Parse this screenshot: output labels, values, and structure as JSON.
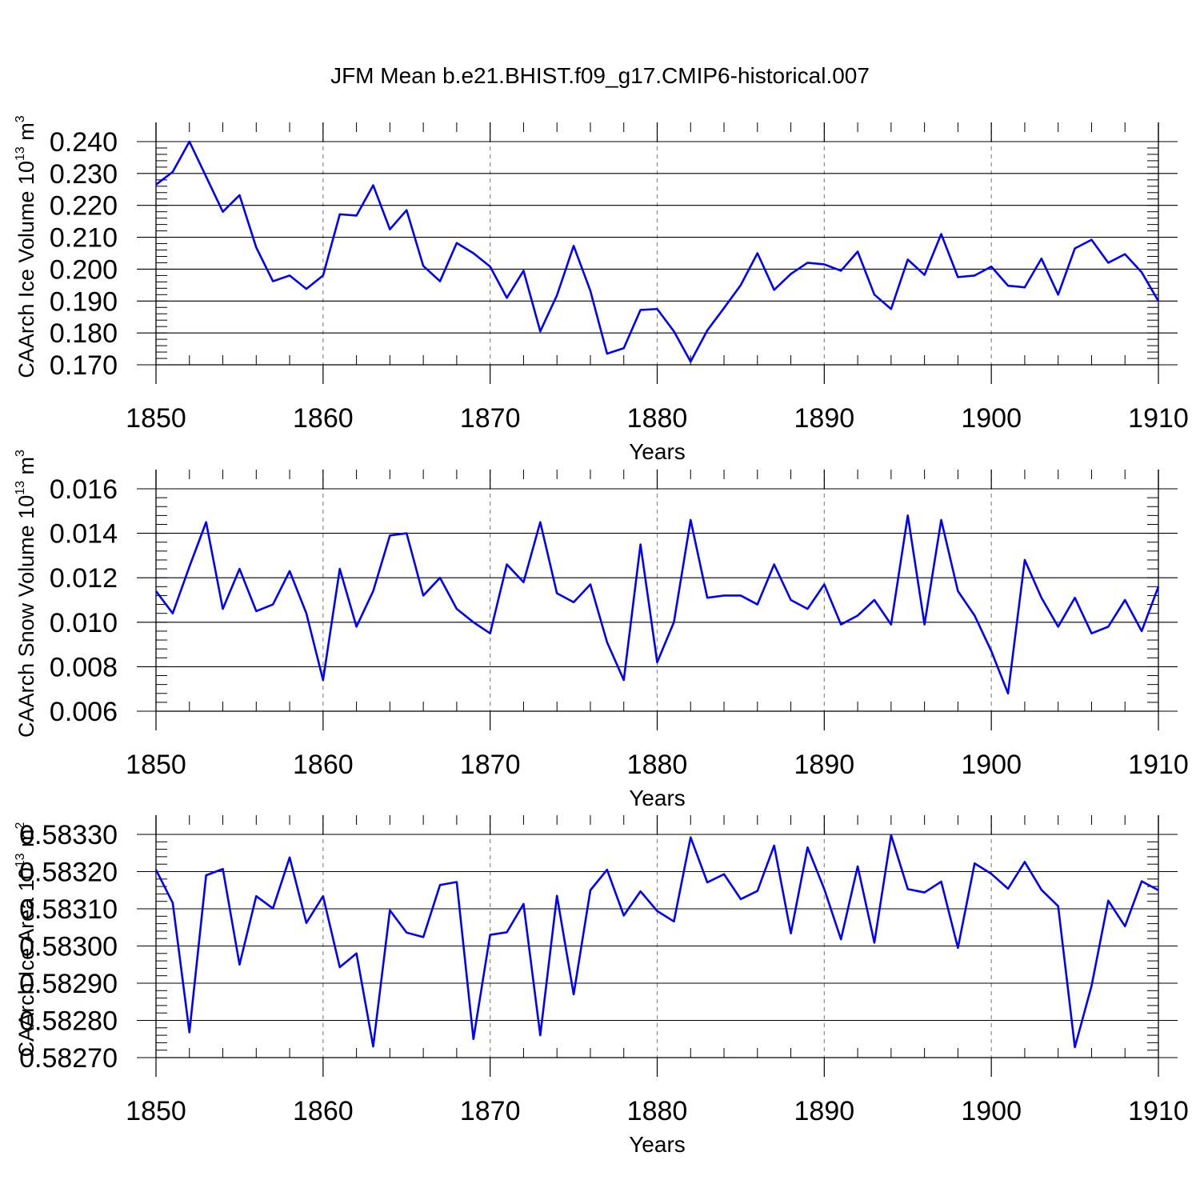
{
  "title": "JFM Mean b.e21.BHIST.f09_g17.CMIP6-historical.007",
  "chart_data": [
    {
      "type": "line",
      "ylabel": {
        "base": "CAArch Ice Volume 10",
        "exp": "13",
        "unit": "m",
        "unit_exp": "3"
      },
      "xlabel": "Years",
      "xlim": [
        1850,
        1910
      ],
      "ylim": [
        0.17,
        0.24
      ],
      "xticks": [
        1850,
        1860,
        1870,
        1880,
        1890,
        1900,
        1910
      ],
      "xtick_labels": [
        "1850",
        "1860",
        "1870",
        "1880",
        "1890",
        "1900",
        "1910"
      ],
      "yticks": [
        0.17,
        0.18,
        0.19,
        0.2,
        0.21,
        0.22,
        0.23,
        0.24
      ],
      "ytick_labels": [
        "0.170",
        "0.180",
        "0.190",
        "0.200",
        "0.210",
        "0.220",
        "0.230",
        "0.240"
      ],
      "minor_y_step": 0.002,
      "color": "#0000ff",
      "series": [
        {
          "name": "CAArch Ice Volume",
          "x_start": 1850,
          "values": [
            0.2265,
            0.2305,
            0.24,
            0.229,
            0.218,
            0.2232,
            0.2068,
            0.1962,
            0.198,
            0.1938,
            0.198,
            0.2172,
            0.2168,
            0.2263,
            0.2125,
            0.2185,
            0.201,
            0.1962,
            0.2082,
            0.205,
            0.2008,
            0.191,
            0.1995,
            0.1805,
            0.1918,
            0.2073,
            0.1932,
            0.1735,
            0.1752,
            0.1872,
            0.1875,
            0.1805,
            0.171,
            0.1808,
            0.1878,
            0.195,
            0.205,
            0.1935,
            0.1985,
            0.202,
            0.2015,
            0.1995,
            0.2055,
            0.192,
            0.1875,
            0.203,
            0.1982,
            0.211,
            0.1975,
            0.198,
            0.2008,
            0.1948,
            0.1943,
            0.2033,
            0.192,
            0.2065,
            0.2092,
            0.202,
            0.2047,
            0.199,
            0.19
          ]
        }
      ]
    },
    {
      "type": "line",
      "ylabel": {
        "base": "CAArch Snow Volume 10",
        "exp": "13",
        "unit": "m",
        "unit_exp": "3"
      },
      "xlabel": "Years",
      "xlim": [
        1850,
        1910
      ],
      "ylim": [
        0.006,
        0.016
      ],
      "xticks": [
        1850,
        1860,
        1870,
        1880,
        1890,
        1900,
        1910
      ],
      "xtick_labels": [
        "1850",
        "1860",
        "1870",
        "1880",
        "1890",
        "1900",
        "1910"
      ],
      "yticks": [
        0.006,
        0.008,
        0.01,
        0.012,
        0.014,
        0.016
      ],
      "ytick_labels": [
        "0.006",
        "0.008",
        "0.010",
        "0.012",
        "0.014",
        "0.016"
      ],
      "minor_y_step": 0.0004,
      "color": "#0000ff",
      "series": [
        {
          "name": "CAArch Snow Volume",
          "x_start": 1850,
          "values": [
            0.0114,
            0.0104,
            0.0125,
            0.0145,
            0.0106,
            0.0124,
            0.0105,
            0.0108,
            0.0123,
            0.0104,
            0.0074,
            0.0124,
            0.0098,
            0.0114,
            0.0139,
            0.014,
            0.0112,
            0.012,
            0.0106,
            0.01,
            0.0095,
            0.0126,
            0.0118,
            0.0145,
            0.0113,
            0.0109,
            0.0117,
            0.0091,
            0.0074,
            0.0135,
            0.0082,
            0.01,
            0.0146,
            0.0111,
            0.0112,
            0.0112,
            0.0108,
            0.0126,
            0.011,
            0.0106,
            0.0117,
            0.0099,
            0.0103,
            0.011,
            0.0099,
            0.0148,
            0.0099,
            0.0146,
            0.0114,
            0.0103,
            0.0087,
            0.0068,
            0.0128,
            0.0111,
            0.0098,
            0.0111,
            0.0095,
            0.0098,
            0.011,
            0.0096,
            0.0116
          ]
        }
      ]
    },
    {
      "type": "line",
      "ylabel": {
        "base": "CAArch Ice Area 10",
        "exp": "13",
        "unit": "m",
        "unit_exp": "2"
      },
      "xlabel": "Years",
      "xlim": [
        1850,
        1910
      ],
      "ylim": [
        0.5827,
        0.5833
      ],
      "xticks": [
        1850,
        1860,
        1870,
        1880,
        1890,
        1900,
        1910
      ],
      "xtick_labels": [
        "1850",
        "1860",
        "1870",
        "1880",
        "1890",
        "1900",
        "1910"
      ],
      "yticks": [
        0.5827,
        0.5828,
        0.5829,
        0.583,
        0.5831,
        0.5832,
        0.5833
      ],
      "ytick_labels": [
        "0.58270",
        "0.58280",
        "0.58290",
        "0.58300",
        "0.58310",
        "0.58320",
        "0.58330"
      ],
      "minor_y_step": 2e-05,
      "color": "#0000ff",
      "series": [
        {
          "name": "CAArch Ice Area",
          "x_start": 1850,
          "values": [
            0.583205,
            0.583116,
            0.582768,
            0.58319,
            0.583207,
            0.58295,
            0.583134,
            0.583101,
            0.583238,
            0.583062,
            0.583134,
            0.582943,
            0.58298,
            0.58273,
            0.583096,
            0.583036,
            0.583024,
            0.583164,
            0.583172,
            0.58275,
            0.58303,
            0.583037,
            0.583113,
            0.58276,
            0.583135,
            0.58287,
            0.58315,
            0.583205,
            0.583082,
            0.583147,
            0.583094,
            0.583066,
            0.583292,
            0.583171,
            0.583193,
            0.583126,
            0.583148,
            0.58327,
            0.583034,
            0.583265,
            0.583153,
            0.583018,
            0.583214,
            0.583009,
            0.583298,
            0.583153,
            0.583144,
            0.583173,
            0.582995,
            0.583222,
            0.583194,
            0.583154,
            0.583226,
            0.583151,
            0.583107,
            0.582728,
            0.582893,
            0.583122,
            0.583053,
            0.583174,
            0.58315
          ]
        }
      ]
    }
  ]
}
